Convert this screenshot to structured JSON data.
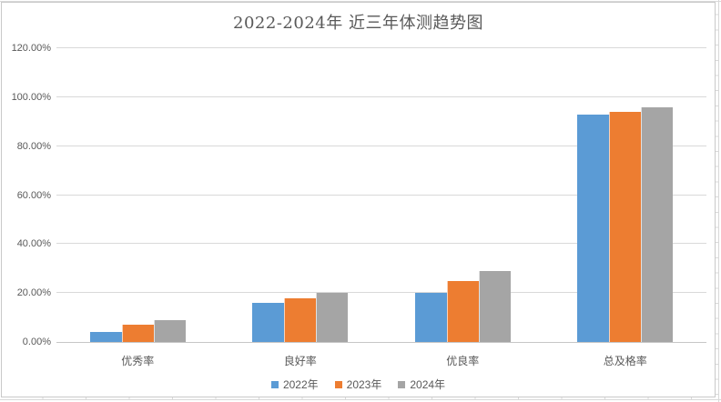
{
  "chart_data": {
    "type": "bar",
    "title": "2022-2024年 近三年体测趋势图",
    "categories": [
      "优秀率",
      "良好率",
      "优良率",
      "总及格率"
    ],
    "series": [
      {
        "name": "2022年",
        "color": "#5B9BD5",
        "values": [
          4,
          16,
          20,
          93
        ]
      },
      {
        "name": "2023年",
        "color": "#ED7D31",
        "values": [
          7,
          18,
          25,
          94
        ]
      },
      {
        "name": "2024年",
        "color": "#A5A5A5",
        "values": [
          9,
          20,
          29,
          96
        ]
      }
    ],
    "values_unit": "percent",
    "ylim": [
      0,
      120
    ],
    "ytick_step": 20,
    "ytick_labels": [
      "0.00%",
      "20.00%",
      "40.00%",
      "60.00%",
      "80.00%",
      "100.00%",
      "120.00%"
    ],
    "grid": true,
    "legend_position": "bottom"
  },
  "colors": {
    "text": "#595959",
    "gridline": "#D9D9D9",
    "axis_line": "#C6C6C6",
    "chart_border": "#C9C9C9",
    "background": "#FFFFFF"
  }
}
